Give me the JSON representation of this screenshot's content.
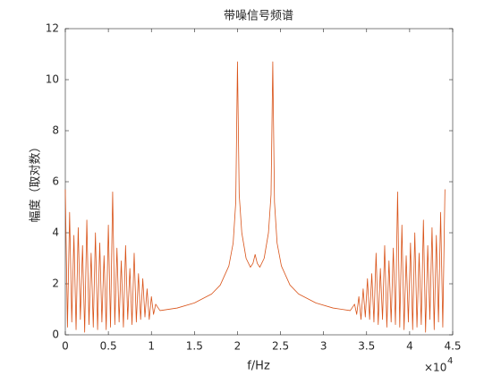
{
  "chart_data": {
    "type": "line",
    "title": "带噪信号频谱",
    "x_label": "f/Hz",
    "y_label": "幅度（取对数）",
    "x_multiplier": {
      "base": "×10",
      "exponent": "4"
    },
    "xlim": [
      0,
      4.5
    ],
    "xticks": [
      0,
      0.5,
      1,
      1.5,
      2,
      2.5,
      3,
      3.5,
      4,
      4.5
    ],
    "ylim": [
      0,
      12
    ],
    "yticks": [
      0,
      2,
      4,
      6,
      8,
      10,
      12
    ],
    "grid": false,
    "series": [
      {
        "color": "#d95319",
        "x": [
          0,
          0.025,
          0.05,
          0.075,
          0.1,
          0.125,
          0.15,
          0.175,
          0.2,
          0.225,
          0.25,
          0.275,
          0.3,
          0.325,
          0.35,
          0.375,
          0.4,
          0.425,
          0.45,
          0.475,
          0.5,
          0.525,
          0.55,
          0.575,
          0.6,
          0.625,
          0.65,
          0.675,
          0.7,
          0.725,
          0.75,
          0.775,
          0.8,
          0.825,
          0.85,
          0.875,
          0.9,
          0.925,
          0.95,
          0.975,
          1.0,
          1.025,
          1.05,
          1.1,
          1.3,
          1.5,
          1.7,
          1.8,
          1.9,
          1.95,
          1.98,
          2.0,
          2.02,
          2.05,
          2.1,
          2.15,
          2.18,
          2.205,
          2.23,
          2.26,
          2.31,
          2.36,
          2.39,
          2.41,
          2.43,
          2.46,
          2.51,
          2.61,
          2.71,
          2.91,
          3.11,
          3.31,
          3.36,
          3.385,
          3.41,
          3.435,
          3.46,
          3.485,
          3.51,
          3.535,
          3.56,
          3.585,
          3.61,
          3.635,
          3.66,
          3.685,
          3.71,
          3.735,
          3.76,
          3.785,
          3.81,
          3.835,
          3.86,
          3.885,
          3.91,
          3.935,
          3.96,
          3.985,
          4.01,
          4.035,
          4.06,
          4.085,
          4.11,
          4.135,
          4.16,
          4.185,
          4.21,
          4.235,
          4.26,
          4.285,
          4.31,
          4.335,
          4.36,
          4.385,
          4.41
        ],
        "values": [
          5.7,
          0.3,
          4.8,
          0.5,
          3.9,
          0.2,
          4.2,
          0.6,
          3.5,
          0.1,
          4.5,
          0.4,
          3.2,
          0.3,
          4.0,
          0.2,
          3.6,
          0.5,
          3.1,
          0.2,
          4.3,
          0.3,
          5.6,
          0.4,
          3.4,
          0.5,
          2.9,
          0.3,
          3.5,
          0.6,
          2.6,
          0.4,
          3.2,
          0.5,
          2.4,
          0.6,
          2.2,
          0.7,
          1.8,
          0.6,
          1.5,
          0.8,
          1.2,
          0.95,
          1.05,
          1.25,
          1.6,
          1.95,
          2.7,
          3.6,
          5.2,
          10.7,
          5.5,
          4.0,
          3.0,
          2.65,
          2.8,
          3.15,
          2.8,
          2.65,
          3.0,
          4.0,
          5.5,
          10.7,
          5.2,
          3.6,
          2.7,
          1.95,
          1.6,
          1.25,
          1.05,
          0.95,
          1.2,
          0.8,
          1.5,
          0.6,
          1.8,
          0.7,
          2.2,
          0.6,
          2.4,
          0.5,
          3.2,
          0.4,
          2.6,
          0.6,
          3.5,
          0.3,
          2.9,
          0.5,
          3.4,
          0.4,
          5.6,
          0.3,
          4.3,
          0.2,
          3.1,
          0.5,
          3.6,
          0.2,
          4.0,
          0.3,
          3.2,
          0.4,
          4.5,
          0.1,
          3.5,
          0.6,
          4.2,
          0.2,
          3.9,
          0.5,
          4.8,
          0.3,
          5.7
        ]
      }
    ]
  }
}
